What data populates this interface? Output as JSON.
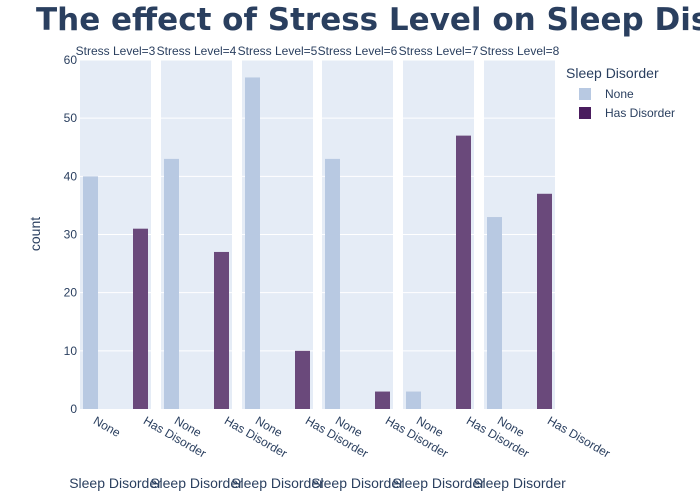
{
  "chart_data": {
    "type": "bar",
    "title": "The effect of Stress Level on Sleep Disorder",
    "ylabel": "count",
    "xlabel": "Sleep Disorder",
    "ylim": [
      0,
      60
    ],
    "yticks": [
      0,
      10,
      20,
      30,
      40,
      50,
      60
    ],
    "categories": [
      "None",
      "Has Disorder"
    ],
    "colors": {
      "None": "#b8c9e2",
      "Has Disorder": "#6a497b",
      "legend_has_disorder": "#4a1c5e",
      "panel_bg": "#e5ecf6"
    },
    "legend": {
      "title": "Sleep Disorder",
      "placement": "top-right",
      "entries": [
        "None",
        "Has Disorder"
      ]
    },
    "facets": [
      {
        "label": "Stress Level=3",
        "values": {
          "None": 40,
          "Has Disorder": 31
        }
      },
      {
        "label": "Stress Level=4",
        "values": {
          "None": 43,
          "Has Disorder": 27
        }
      },
      {
        "label": "Stress Level=5",
        "values": {
          "None": 57,
          "Has Disorder": 10
        }
      },
      {
        "label": "Stress Level=6",
        "values": {
          "None": 43,
          "Has Disorder": 3
        }
      },
      {
        "label": "Stress Level=7",
        "values": {
          "None": 3,
          "Has Disorder": 47
        }
      },
      {
        "label": "Stress Level=8",
        "values": {
          "None": 33,
          "Has Disorder": 37
        }
      }
    ]
  }
}
